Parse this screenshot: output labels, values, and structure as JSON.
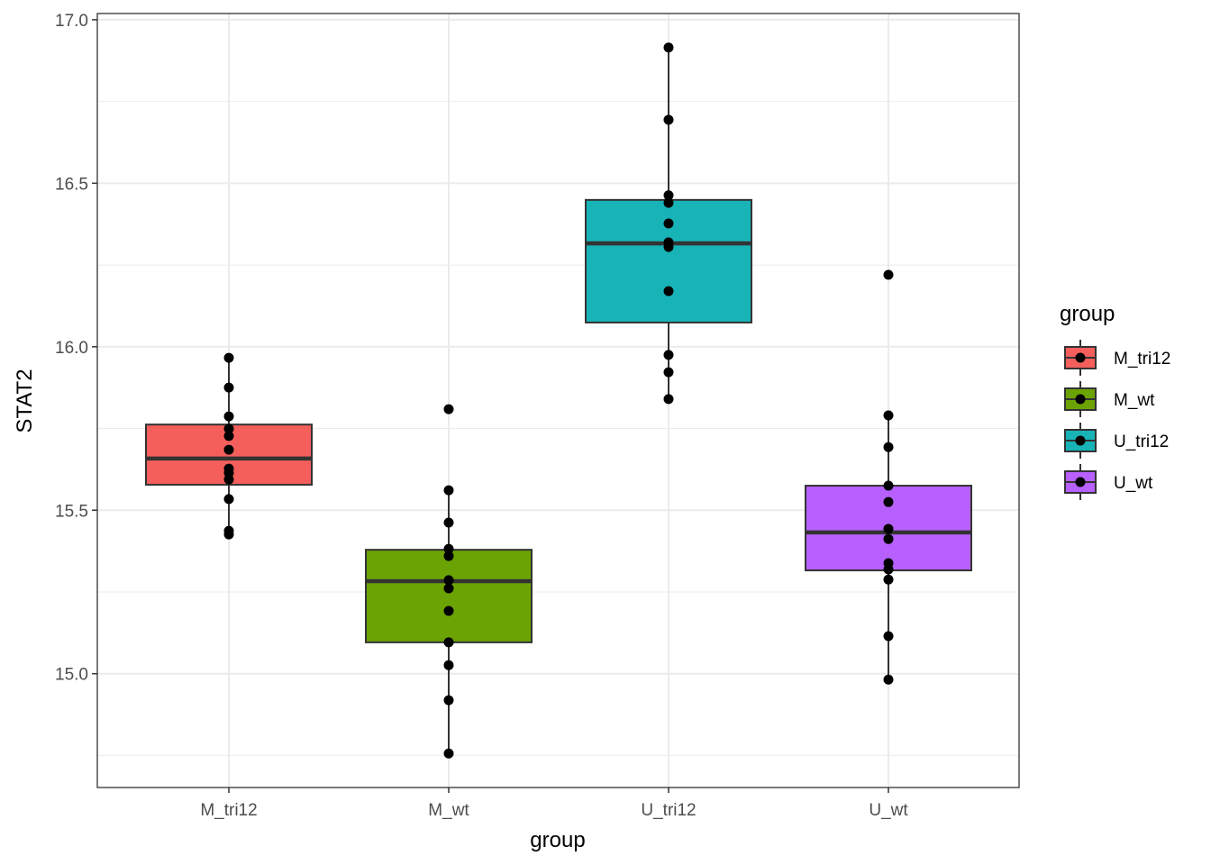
{
  "chart_data": {
    "type": "boxplot",
    "title": "",
    "xlabel": "group",
    "ylabel": "STAT2",
    "ylim": [
      14.652,
      17.019
    ],
    "yticks": [
      15.0,
      15.5,
      16.0,
      16.5,
      17.0
    ],
    "ytick_labels": [
      "15.0",
      "15.5",
      "16.0",
      "16.5",
      "17.0"
    ],
    "ygrid_minor": [
      14.75,
      15.25,
      15.75,
      16.25,
      16.75
    ],
    "grid": true,
    "categories": [
      "M_tri12",
      "M_wt",
      "U_tri12",
      "U_wt"
    ],
    "legend": {
      "title": "group",
      "position": "right",
      "entries": [
        "M_tri12",
        "M_wt",
        "U_tri12",
        "U_wt"
      ]
    },
    "series": [
      {
        "name": "M_tri12",
        "color": "#F8766D",
        "box": {
          "lower_whisker": 15.426,
          "q1": 15.578,
          "median": 15.658,
          "q3": 15.762,
          "upper_whisker": 15.966
        },
        "points": [
          15.966,
          15.875,
          15.787,
          15.749,
          15.727,
          15.685,
          15.627,
          15.614,
          15.594,
          15.534,
          15.437,
          15.426
        ]
      },
      {
        "name": "M_wt",
        "color": "#7CAE00",
        "box": {
          "lower_whisker": 14.756,
          "q1": 15.096,
          "median": 15.283,
          "q3": 15.379,
          "upper_whisker": 15.561
        },
        "points": [
          15.809,
          15.561,
          15.462,
          15.382,
          15.36,
          15.286,
          15.261,
          15.192,
          15.096,
          15.026,
          14.919,
          14.756
        ]
      },
      {
        "name": "U_tri12",
        "color": "#00BFC4",
        "box": {
          "lower_whisker": 15.84,
          "q1": 16.074,
          "median": 16.316,
          "q3": 16.449,
          "upper_whisker": 16.915
        },
        "points": [
          16.915,
          16.694,
          16.463,
          16.44,
          16.377,
          16.319,
          16.305,
          16.17,
          15.975,
          15.922,
          15.84
        ]
      },
      {
        "name": "U_wt",
        "color": "#C77CFF",
        "box": {
          "lower_whisker": 14.982,
          "q1": 15.316,
          "median": 15.432,
          "q3": 15.575,
          "upper_whisker": 15.79
        },
        "points": [
          16.22,
          15.79,
          15.693,
          15.575,
          15.525,
          15.443,
          15.412,
          15.338,
          15.319,
          15.288,
          15.115,
          14.982
        ]
      }
    ]
  },
  "colors": {
    "M_tri12": "#F45F5C",
    "M_wt": "#6CA304",
    "U_tri12": "#18B3B7",
    "U_wt": "#B760FE",
    "grid": "#EBEBEB",
    "outline": "#333333"
  }
}
